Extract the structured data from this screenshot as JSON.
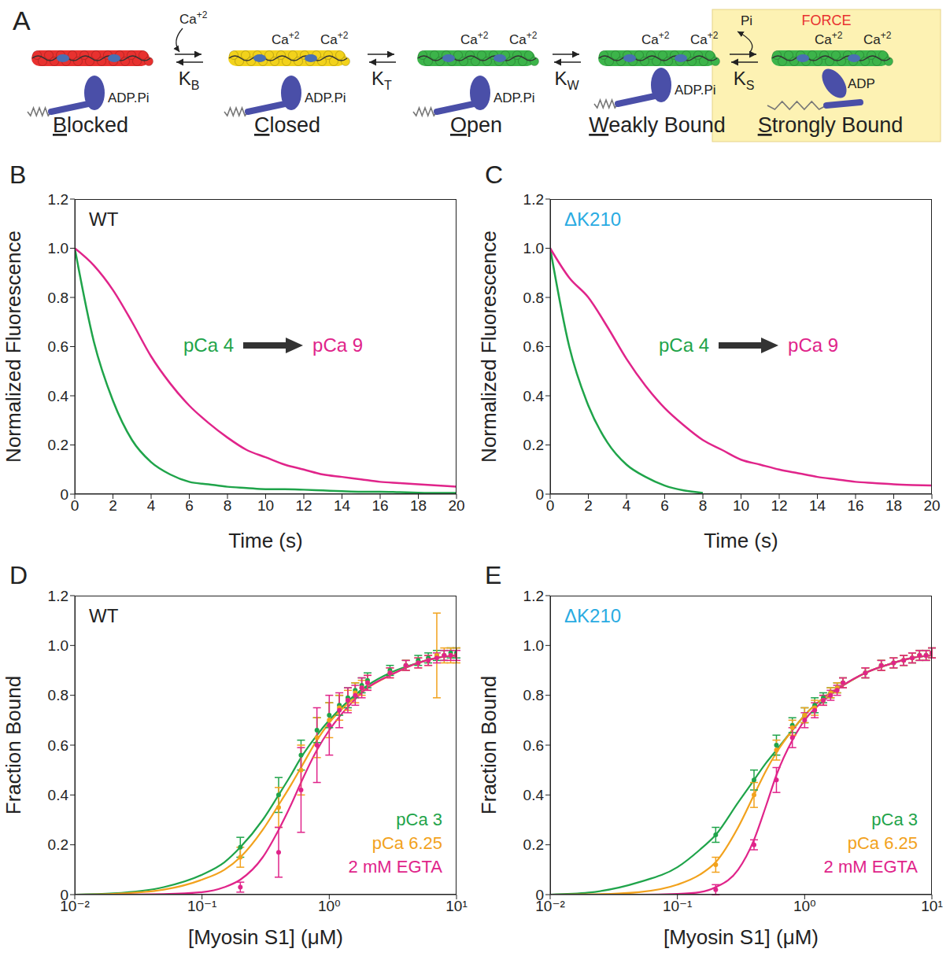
{
  "diagram": {
    "panel_label": "A",
    "calcium": {
      "base": "Ca",
      "sup": "+2"
    },
    "states": [
      {
        "label": "Blocked",
        "color": "#e8312f",
        "nucleotide": "ADP.Pi",
        "calcium": 0
      },
      {
        "label": "Closed",
        "color": "#f2d21b",
        "nucleotide": "ADP.Pi",
        "calcium": 2
      },
      {
        "label": "Open",
        "color": "#3cb44a",
        "nucleotide": "ADP.Pi",
        "calcium": 2
      },
      {
        "label": "Weakly Bound",
        "color": "#3cb44a",
        "nucleotide": "ADP.Pi",
        "calcium": 2
      },
      {
        "label": "Strongly Bound",
        "color": "#3cb44a",
        "nucleotide": "ADP",
        "calcium": 2
      }
    ],
    "transitions": [
      {
        "constant": "K",
        "subscript": "B",
        "ligand_bound": true
      },
      {
        "constant": "K",
        "subscript": "T"
      },
      {
        "constant": "K",
        "subscript": "W"
      },
      {
        "constant": "K",
        "subscript": "S",
        "ligand_released": "Pi"
      }
    ],
    "highlight": {
      "text": "FORCE",
      "color": "#e8312f",
      "fill": "#fdf2b3"
    }
  },
  "chart_data": [
    {
      "type": "line",
      "panel_label": "B",
      "title": "WT",
      "xlabel": "Time (s)",
      "ylabel": "Normalized Fluorescence",
      "xlim": [
        0,
        20
      ],
      "xticks": [
        0,
        2,
        4,
        6,
        8,
        10,
        12,
        14,
        16,
        18,
        20
      ],
      "ylim": [
        0,
        1.2
      ],
      "yticks": [
        0,
        0.2,
        0.4,
        0.6,
        0.8,
        {
          "value": 1,
          "label": "1.0"
        },
        1.2
      ],
      "legend": "center",
      "x": [
        0,
        1,
        2,
        3,
        4,
        5,
        6,
        7,
        8,
        9,
        10,
        11,
        12,
        13,
        14,
        15,
        16,
        17,
        18,
        19,
        20
      ],
      "series": [
        {
          "name": "pCa 4",
          "color": "#1fa44a",
          "values": [
            1.0,
            0.62,
            0.38,
            0.22,
            0.13,
            0.08,
            0.05,
            0.04,
            0.03,
            0.025,
            0.02,
            0.02,
            0.018,
            0.015,
            0.012,
            0.01,
            0.01,
            0.008,
            0.006,
            0.005,
            0.005
          ]
        },
        {
          "name": "pCa 9",
          "color": "#e0248a",
          "values": [
            1.0,
            0.93,
            0.83,
            0.7,
            0.56,
            0.45,
            0.36,
            0.29,
            0.23,
            0.18,
            0.15,
            0.12,
            0.1,
            0.08,
            0.07,
            0.06,
            0.05,
            0.045,
            0.04,
            0.035,
            0.03
          ]
        }
      ]
    },
    {
      "type": "line",
      "panel_label": "C",
      "title": "ΔK210",
      "xlabel": "Time (s)",
      "ylabel": "Normalized Fluorescence",
      "xlim": [
        0,
        20
      ],
      "xticks": [
        0,
        2,
        4,
        6,
        8,
        10,
        12,
        14,
        16,
        18,
        20
      ],
      "ylim": [
        0,
        1.2
      ],
      "yticks": [
        0,
        0.2,
        0.4,
        0.6,
        0.8,
        {
          "value": 1,
          "label": "1.0"
        },
        1.2
      ],
      "legend": "center",
      "x": [
        0,
        1,
        2,
        3,
        4,
        5,
        6,
        7,
        8,
        9,
        10,
        11,
        12,
        13,
        14,
        15,
        16,
        17,
        18,
        19,
        20
      ],
      "series": [
        {
          "name": "pCa 4",
          "color": "#1fa44a",
          "values": [
            1.0,
            0.6,
            0.36,
            0.21,
            0.12,
            0.07,
            0.035,
            0.015,
            0.005,
            null,
            null,
            null,
            null,
            null,
            null,
            null,
            null,
            null,
            null,
            null,
            null
          ]
        },
        {
          "name": "pCa 9",
          "color": "#e0248a",
          "values": [
            1.0,
            0.88,
            0.8,
            0.68,
            0.55,
            0.44,
            0.35,
            0.28,
            0.22,
            0.18,
            0.14,
            0.12,
            0.1,
            0.085,
            0.07,
            0.06,
            0.05,
            0.045,
            0.04,
            0.037,
            0.035
          ]
        }
      ]
    },
    {
      "type": "scatter",
      "panel_label": "D",
      "title": "WT",
      "xlabel": "[Myosin S1] (μM)",
      "ylabel": "Fraction Bound",
      "log": "x",
      "xlim": [
        0.01,
        10
      ],
      "xticks": [
        {
          "value": 0.01,
          "label": "10⁻²"
        },
        {
          "value": 0.1,
          "label": "10⁻¹"
        },
        {
          "value": 1,
          "label": "10⁰"
        },
        {
          "value": 10,
          "label": "10¹"
        }
      ],
      "ylim": [
        0,
        1.2
      ],
      "yticks": [
        0,
        0.2,
        0.4,
        0.6,
        0.8,
        {
          "value": 1,
          "label": "1.0"
        },
        1.2
      ],
      "legend": "lower right",
      "series": [
        {
          "name": "pCa 3",
          "color": "#1fa44a",
          "marker": "circle",
          "x": [
            0.2,
            0.4,
            0.6,
            0.8,
            1.0,
            1.2,
            1.4,
            1.6,
            1.8,
            2.0,
            3,
            4,
            5,
            6,
            7,
            8,
            9,
            10
          ],
          "values": [
            0.19,
            0.4,
            0.56,
            0.66,
            0.72,
            0.76,
            0.79,
            0.82,
            0.84,
            0.86,
            0.9,
            0.92,
            0.94,
            0.95,
            0.96,
            0.96,
            0.97,
            0.97
          ],
          "errors": [
            0.04,
            0.07,
            0.06,
            0.05,
            0.05,
            0.04,
            0.04,
            0.03,
            0.03,
            0.03,
            0.02,
            0.02,
            0.02,
            0.02,
            0.02,
            0.02,
            0.02,
            0.02
          ],
          "fit": {
            "x": [
              0.01,
              0.02,
              0.05,
              0.1,
              0.15,
              0.2,
              0.3,
              0.4,
              0.5,
              0.6,
              0.8,
              1,
              1.5,
              2,
              3,
              5,
              7,
              10
            ],
            "values": [
              0,
              0.005,
              0.03,
              0.08,
              0.13,
              0.19,
              0.3,
              0.4,
              0.48,
              0.55,
              0.64,
              0.7,
              0.79,
              0.84,
              0.89,
              0.93,
              0.95,
              0.96
            ]
          }
        },
        {
          "name": "pCa 6.25",
          "color": "#f2a21d",
          "marker": "circle",
          "x": [
            0.2,
            0.4,
            0.6,
            0.8,
            1.0,
            1.2,
            1.4,
            1.6,
            1.8,
            2.0,
            3,
            4,
            5,
            6,
            7,
            8,
            9,
            10
          ],
          "values": [
            0.15,
            0.35,
            0.5,
            0.63,
            0.7,
            0.75,
            0.78,
            0.81,
            0.83,
            0.85,
            0.89,
            0.92,
            0.93,
            0.94,
            0.96,
            0.96,
            0.96,
            0.96
          ],
          "errors": [
            0.04,
            0.08,
            0.1,
            0.08,
            0.07,
            0.05,
            0.04,
            0.04,
            0.03,
            0.03,
            0.02,
            0.02,
            0.02,
            0.02,
            0.17,
            0.03,
            0.03,
            0.03
          ],
          "fit": {
            "x": [
              0.01,
              0.02,
              0.05,
              0.1,
              0.15,
              0.2,
              0.3,
              0.4,
              0.5,
              0.6,
              0.8,
              1,
              1.5,
              2,
              3,
              5,
              7,
              10
            ],
            "values": [
              0,
              0.003,
              0.02,
              0.06,
              0.1,
              0.15,
              0.26,
              0.36,
              0.44,
              0.51,
              0.62,
              0.69,
              0.78,
              0.83,
              0.88,
              0.93,
              0.95,
              0.96
            ]
          }
        },
        {
          "name": "2 mM EGTA",
          "color": "#e0248a",
          "marker": "circle",
          "x": [
            0.2,
            0.4,
            0.6,
            0.8,
            1.0,
            1.2,
            1.4,
            1.6,
            1.8,
            2.0,
            3,
            4,
            5,
            6,
            7,
            8,
            9,
            10
          ],
          "values": [
            0.03,
            0.17,
            0.42,
            0.6,
            0.68,
            0.74,
            0.78,
            0.8,
            0.83,
            0.85,
            0.89,
            0.92,
            0.93,
            0.94,
            0.95,
            0.96,
            0.96,
            0.96
          ],
          "errors": [
            0.02,
            0.1,
            0.17,
            0.15,
            0.12,
            0.07,
            0.05,
            0.04,
            0.04,
            0.03,
            0.02,
            0.02,
            0.02,
            0.02,
            0.02,
            0.02,
            0.02,
            0.02
          ],
          "fit": {
            "x": [
              0.01,
              0.02,
              0.05,
              0.1,
              0.15,
              0.2,
              0.3,
              0.4,
              0.5,
              0.6,
              0.8,
              1,
              1.5,
              2,
              3,
              5,
              7,
              10
            ],
            "values": [
              0,
              0,
              0.002,
              0.01,
              0.03,
              0.06,
              0.15,
              0.26,
              0.36,
              0.45,
              0.58,
              0.66,
              0.77,
              0.83,
              0.88,
              0.93,
              0.95,
              0.96
            ]
          }
        }
      ]
    },
    {
      "type": "scatter",
      "panel_label": "E",
      "title": "ΔK210",
      "xlabel": "[Myosin S1] (μM)",
      "ylabel": "Fraction Bound",
      "log": "x",
      "xlim": [
        0.01,
        10
      ],
      "xticks": [
        {
          "value": 0.01,
          "label": "10⁻²"
        },
        {
          "value": 0.1,
          "label": "10⁻¹"
        },
        {
          "value": 1,
          "label": "10⁰"
        },
        {
          "value": 10,
          "label": "10¹"
        }
      ],
      "ylim": [
        0,
        1.2
      ],
      "yticks": [
        0,
        0.2,
        0.4,
        0.6,
        0.8,
        {
          "value": 1,
          "label": "1.0"
        },
        1.2
      ],
      "legend": "lower right",
      "series": [
        {
          "name": "pCa 3",
          "color": "#1fa44a",
          "marker": "circle",
          "x": [
            0.2,
            0.4,
            0.6,
            0.8,
            1.0,
            1.2,
            1.4,
            1.6,
            1.8,
            2.0,
            3,
            4,
            5,
            6,
            7,
            8,
            9,
            10
          ],
          "values": [
            0.24,
            0.46,
            0.6,
            0.68,
            0.72,
            0.76,
            0.79,
            0.81,
            0.83,
            0.85,
            0.89,
            0.92,
            0.93,
            0.94,
            0.95,
            0.96,
            0.96,
            0.97
          ],
          "errors": [
            0.03,
            0.04,
            0.04,
            0.03,
            0.03,
            0.03,
            0.02,
            0.02,
            0.02,
            0.02,
            0.02,
            0.02,
            0.02,
            0.02,
            0.02,
            0.02,
            0.02,
            0.02
          ],
          "fit": {
            "x": [
              0.01,
              0.02,
              0.05,
              0.1,
              0.15,
              0.2,
              0.3,
              0.4,
              0.5,
              0.6,
              0.8,
              1,
              1.5,
              2,
              3,
              5,
              7,
              10
            ],
            "values": [
              0,
              0.008,
              0.05,
              0.11,
              0.18,
              0.24,
              0.37,
              0.46,
              0.53,
              0.58,
              0.66,
              0.72,
              0.8,
              0.84,
              0.89,
              0.93,
              0.95,
              0.96
            ]
          }
        },
        {
          "name": "pCa 6.25",
          "color": "#f2a21d",
          "marker": "circle",
          "x": [
            0.2,
            0.4,
            0.6,
            0.8,
            1.0,
            1.2,
            1.4,
            1.6,
            1.8,
            2.0,
            3,
            4,
            5,
            6,
            7,
            8,
            9,
            10
          ],
          "values": [
            0.12,
            0.4,
            0.58,
            0.67,
            0.72,
            0.75,
            0.78,
            0.81,
            0.83,
            0.85,
            0.89,
            0.92,
            0.93,
            0.94,
            0.95,
            0.96,
            0.96,
            0.97
          ],
          "errors": [
            0.03,
            0.05,
            0.04,
            0.03,
            0.03,
            0.03,
            0.02,
            0.02,
            0.02,
            0.02,
            0.02,
            0.02,
            0.02,
            0.02,
            0.02,
            0.02,
            0.02,
            0.02
          ],
          "fit": {
            "x": [
              0.01,
              0.02,
              0.05,
              0.1,
              0.15,
              0.2,
              0.3,
              0.4,
              0.5,
              0.6,
              0.8,
              1,
              1.5,
              2,
              3,
              5,
              7,
              10
            ],
            "values": [
              0,
              0.001,
              0.01,
              0.04,
              0.08,
              0.13,
              0.27,
              0.4,
              0.5,
              0.57,
              0.66,
              0.72,
              0.8,
              0.84,
              0.89,
              0.93,
              0.95,
              0.96
            ]
          }
        },
        {
          "name": "2 mM EGTA",
          "color": "#e0248a",
          "marker": "circle",
          "x": [
            0.2,
            0.4,
            0.6,
            0.8,
            1.0,
            1.2,
            1.4,
            1.6,
            1.8,
            2.0,
            3,
            4,
            5,
            6,
            7,
            8,
            9,
            10
          ],
          "values": [
            0.02,
            0.2,
            0.46,
            0.63,
            0.7,
            0.74,
            0.78,
            0.8,
            0.82,
            0.85,
            0.89,
            0.92,
            0.93,
            0.94,
            0.95,
            0.96,
            0.96,
            0.97
          ],
          "errors": [
            0.02,
            0.02,
            0.05,
            0.04,
            0.03,
            0.03,
            0.02,
            0.02,
            0.02,
            0.02,
            0.02,
            0.02,
            0.02,
            0.02,
            0.02,
            0.02,
            0.02,
            0.02
          ],
          "fit": {
            "x": [
              0.01,
              0.02,
              0.05,
              0.1,
              0.15,
              0.2,
              0.3,
              0.4,
              0.5,
              0.6,
              0.8,
              1,
              1.5,
              2,
              3,
              5,
              7,
              10
            ],
            "values": [
              0,
              0,
              0,
              0.003,
              0.01,
              0.03,
              0.1,
              0.22,
              0.36,
              0.48,
              0.62,
              0.7,
              0.79,
              0.84,
              0.89,
              0.93,
              0.95,
              0.96
            ]
          }
        }
      ]
    }
  ]
}
